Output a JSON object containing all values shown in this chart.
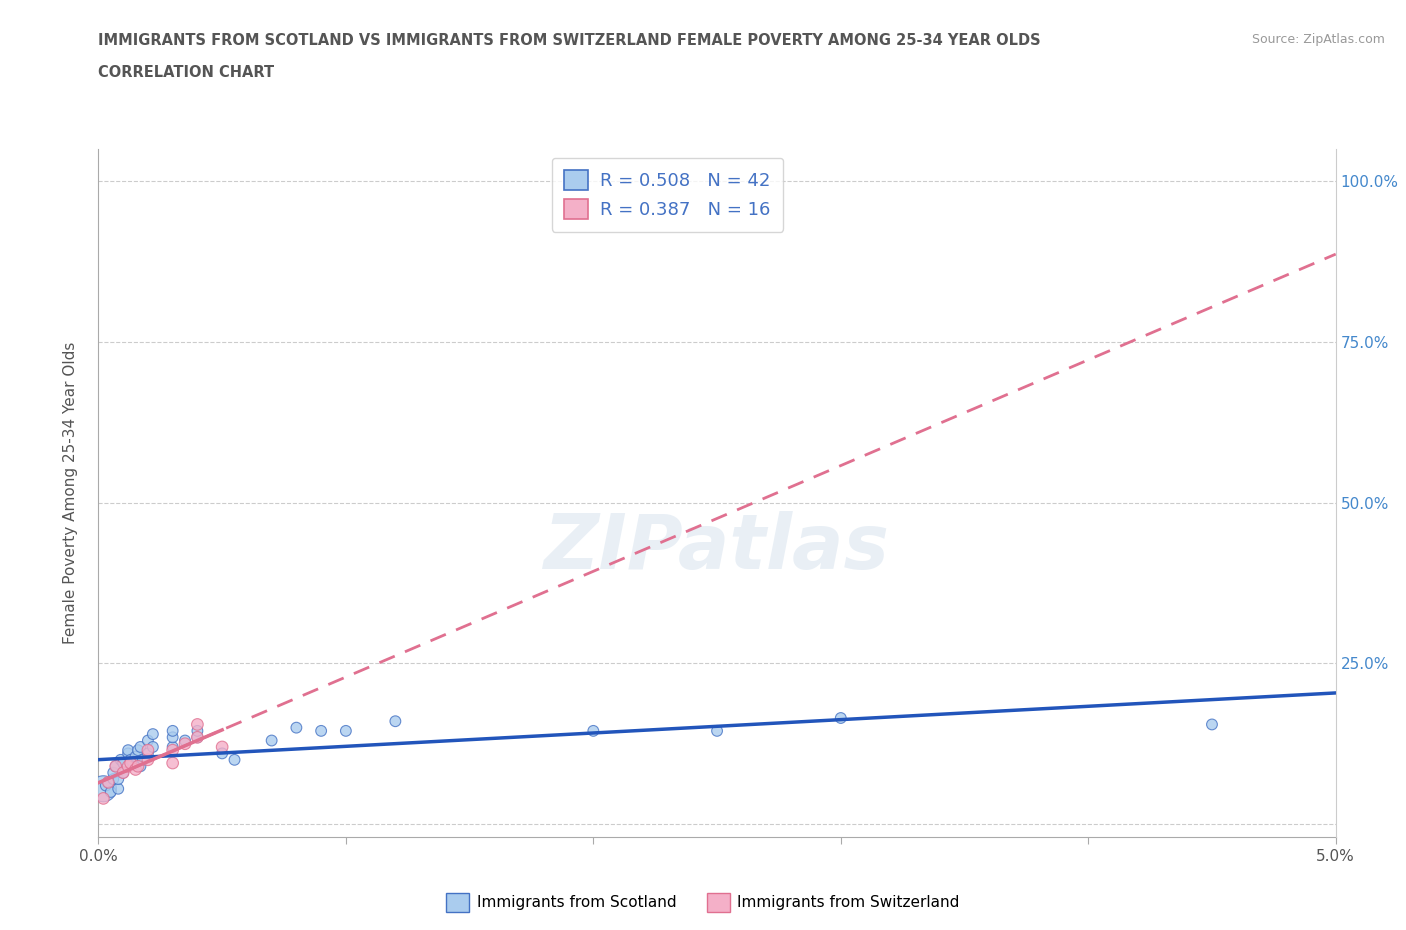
{
  "title_line1": "IMMIGRANTS FROM SCOTLAND VS IMMIGRANTS FROM SWITZERLAND FEMALE POVERTY AMONG 25-34 YEAR OLDS",
  "title_line2": "CORRELATION CHART",
  "source": "Source: ZipAtlas.com",
  "ylabel": "Female Poverty Among 25-34 Year Olds",
  "xlim": [
    0.0,
    0.05
  ],
  "ylim": [
    -0.02,
    1.05
  ],
  "yticks": [
    0.0,
    0.25,
    0.5,
    0.75,
    1.0
  ],
  "ytick_labels_right": [
    "",
    "25.0%",
    "50.0%",
    "75.0%",
    "100.0%"
  ],
  "xticks": [
    0.0,
    0.01,
    0.02,
    0.03,
    0.04,
    0.05
  ],
  "xtick_labels": [
    "0.0%",
    "",
    "",
    "",
    "",
    "5.0%"
  ],
  "scotland_color": "#aaccee",
  "scotland_edge_color": "#4472c4",
  "switzerland_color": "#f4b0c8",
  "switzerland_edge_color": "#e07090",
  "scotland_line_color": "#2255bb",
  "switzerland_line_color": "#e07090",
  "watermark": "ZIPatlas",
  "legend_r_scotland": "R = 0.508   N = 42",
  "legend_r_switzerland": "R = 0.387   N = 16",
  "legend_text_color": "#4472c4",
  "scotland_points": [
    [
      0.0002,
      0.055
    ],
    [
      0.0003,
      0.06
    ],
    [
      0.0004,
      0.065
    ],
    [
      0.0005,
      0.05
    ],
    [
      0.0006,
      0.07
    ],
    [
      0.0006,
      0.08
    ],
    [
      0.0007,
      0.09
    ],
    [
      0.0008,
      0.055
    ],
    [
      0.0008,
      0.07
    ],
    [
      0.0009,
      0.1
    ],
    [
      0.001,
      0.08
    ],
    [
      0.001,
      0.095
    ],
    [
      0.0012,
      0.11
    ],
    [
      0.0012,
      0.115
    ],
    [
      0.0013,
      0.1
    ],
    [
      0.0014,
      0.095
    ],
    [
      0.0015,
      0.105
    ],
    [
      0.0016,
      0.115
    ],
    [
      0.0017,
      0.12
    ],
    [
      0.0017,
      0.09
    ],
    [
      0.0018,
      0.1
    ],
    [
      0.002,
      0.11
    ],
    [
      0.002,
      0.13
    ],
    [
      0.0022,
      0.12
    ],
    [
      0.0022,
      0.14
    ],
    [
      0.003,
      0.12
    ],
    [
      0.003,
      0.135
    ],
    [
      0.003,
      0.145
    ],
    [
      0.0035,
      0.13
    ],
    [
      0.004,
      0.135
    ],
    [
      0.004,
      0.145
    ],
    [
      0.005,
      0.11
    ],
    [
      0.0055,
      0.1
    ],
    [
      0.007,
      0.13
    ],
    [
      0.008,
      0.15
    ],
    [
      0.009,
      0.145
    ],
    [
      0.01,
      0.145
    ],
    [
      0.012,
      0.16
    ],
    [
      0.02,
      0.145
    ],
    [
      0.025,
      0.145
    ],
    [
      0.03,
      0.165
    ],
    [
      0.045,
      0.155
    ]
  ],
  "switzerland_points": [
    [
      0.0002,
      0.04
    ],
    [
      0.0004,
      0.065
    ],
    [
      0.0007,
      0.09
    ],
    [
      0.001,
      0.08
    ],
    [
      0.0012,
      0.09
    ],
    [
      0.0013,
      0.095
    ],
    [
      0.0015,
      0.085
    ],
    [
      0.0016,
      0.09
    ],
    [
      0.002,
      0.1
    ],
    [
      0.002,
      0.115
    ],
    [
      0.003,
      0.115
    ],
    [
      0.003,
      0.095
    ],
    [
      0.0035,
      0.125
    ],
    [
      0.004,
      0.135
    ],
    [
      0.004,
      0.155
    ],
    [
      0.005,
      0.12
    ]
  ],
  "scotland_base_size": 60,
  "scotland_large_size": 350,
  "switzerland_base_size": 70
}
